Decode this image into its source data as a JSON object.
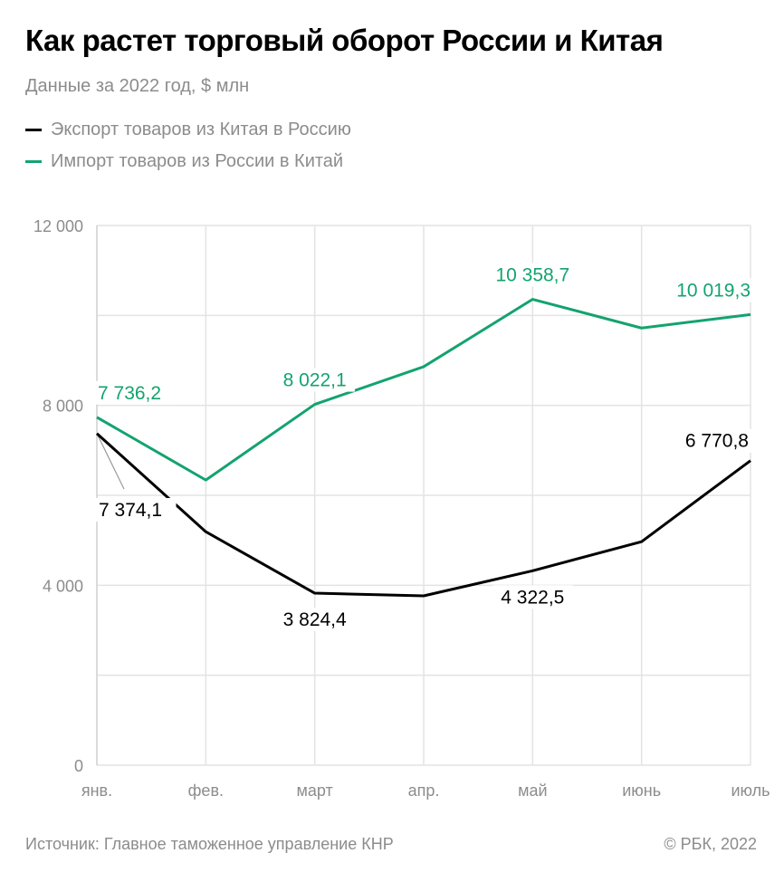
{
  "title": "Как растет торговый оборот России и Китая",
  "subtitle": "Данные за 2022 год, $ млн",
  "colors": {
    "export": "#000000",
    "import": "#13a36f",
    "grid": "#e3e3e3",
    "axis_text": "#8c8c8c"
  },
  "footer": {
    "source": "Источник: Главное таможенное управление КНР",
    "copyright": "© РБК, 2022"
  },
  "chart_data": {
    "type": "line",
    "categories": [
      "янв.",
      "фев.",
      "март",
      "апр.",
      "май",
      "июнь",
      "июль"
    ],
    "ylim": [
      0,
      12000
    ],
    "yticks": [
      0,
      4000,
      8000,
      12000
    ],
    "ytick_labels": [
      "0",
      "4 000",
      "8 000",
      "12 000"
    ],
    "grid": true,
    "legend": "top-left",
    "series": [
      {
        "name": "Экспорт товаров из Китая в Россию",
        "color": "#000000",
        "values": [
          7374.1,
          5190,
          3824.4,
          3765,
          4322.5,
          4970,
          6770.8
        ],
        "labels": [
          "7 374,1",
          null,
          "3 824,4",
          null,
          "4 322,5",
          null,
          "6 770,8"
        ]
      },
      {
        "name": "Импорт товаров из России в Китай",
        "color": "#13a36f",
        "values": [
          7736.2,
          6340,
          8022.1,
          8860,
          10358.7,
          9720,
          10019.3
        ],
        "labels": [
          "7 736,2",
          null,
          "8 022,1",
          null,
          "10 358,7",
          null,
          "10 019,3"
        ]
      }
    ]
  }
}
